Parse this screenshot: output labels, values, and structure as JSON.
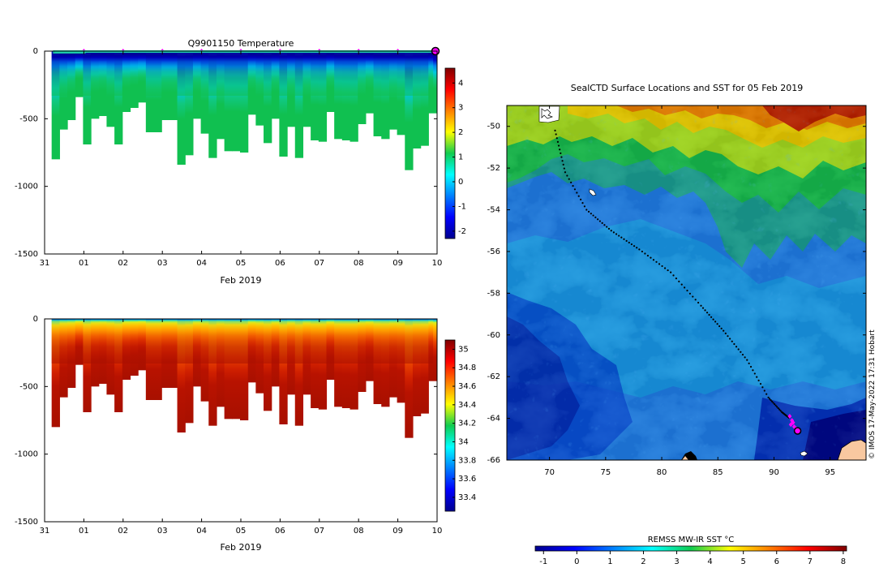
{
  "credit": "© IMOS 17-May-2022 17:31 Hobart",
  "chart_data": [
    {
      "type": "heatmap",
      "title": "Q9901150  Temperature",
      "variable": "temperature",
      "xlabel": "Feb 2019",
      "ylabel": "",
      "x_ticks": [
        "31",
        "01",
        "02",
        "03",
        "04",
        "05",
        "06",
        "07",
        "08",
        "09",
        "10"
      ],
      "xlim": [
        -1,
        9
      ],
      "ylim": [
        -1500,
        0
      ],
      "y_ticks": [
        0,
        -500,
        -1000,
        -1500
      ],
      "colorbar": {
        "range": [
          -2.3,
          4.6
        ],
        "ticks": [
          -2,
          -1,
          0,
          1,
          2,
          3,
          4
        ],
        "colormap": "jet"
      },
      "profile_day_offsets": [
        -0.8,
        -0.6,
        -0.4,
        -0.2,
        0.0,
        0.2,
        0.4,
        0.6,
        0.8,
        1.0,
        1.2,
        1.4,
        1.6,
        1.8,
        2.0,
        2.2,
        2.4,
        2.6,
        2.8,
        3.0,
        3.2,
        3.4,
        3.6,
        3.8,
        4.0,
        4.2,
        4.4,
        4.6,
        4.8,
        5.0,
        5.2,
        5.4,
        5.6,
        5.8,
        6.0,
        6.2,
        6.4,
        6.6,
        6.8,
        7.0,
        7.2,
        7.4,
        7.6,
        7.8,
        8.0,
        8.2,
        8.4,
        8.6,
        8.8
      ],
      "profile_max_depths": [
        800,
        580,
        510,
        340,
        690,
        500,
        480,
        560,
        690,
        450,
        420,
        380,
        600,
        600,
        510,
        510,
        840,
        770,
        500,
        610,
        790,
        650,
        740,
        740,
        750,
        470,
        550,
        680,
        500,
        780,
        560,
        790,
        560,
        660,
        670,
        450,
        650,
        660,
        670,
        540,
        460,
        630,
        650,
        580,
        620,
        880,
        720,
        700,
        460
      ],
      "gap_days": [
        8.9,
        9.85
      ],
      "surface_markers_days": [
        0,
        1,
        2,
        3,
        4,
        5,
        6,
        7,
        8
      ],
      "current_marker_day": 9
    },
    {
      "type": "heatmap",
      "title": "",
      "variable": "salinity",
      "xlabel": "Feb 2019",
      "x_ticks": [
        "31",
        "01",
        "02",
        "03",
        "04",
        "05",
        "06",
        "07",
        "08",
        "09",
        "10"
      ],
      "xlim": [
        -1,
        9
      ],
      "ylim": [
        -1500,
        0
      ],
      "y_ticks": [
        0,
        -500,
        -1000,
        -1500
      ],
      "colorbar": {
        "range": [
          33.25,
          35.1
        ],
        "ticks": [
          33.4,
          33.6,
          33.8,
          34,
          34.2,
          34.4,
          34.6,
          34.8,
          35
        ],
        "tick_labels": [
          "33.4",
          "33.6",
          "33.8",
          "34",
          "34.2",
          "34.4",
          "34.6",
          "34.8",
          "35"
        ],
        "colormap": "jet"
      }
    },
    {
      "type": "heatmap",
      "title": "SealCTD Surface Locations and SST for 05 Feb 2019",
      "variable": "sea surface temperature",
      "xlabel": "",
      "ylabel": "",
      "x_ticks": [
        70,
        75,
        80,
        85,
        90,
        95
      ],
      "xlim": [
        66.2,
        98.2
      ],
      "y_ticks": [
        -50,
        -52,
        -54,
        -56,
        -58,
        -60,
        -62,
        -64,
        -66
      ],
      "ylim": [
        -66,
        -49
      ],
      "colorbar": {
        "label": "REMSS MW-IR SST °C",
        "range": [
          -1.25,
          8.1
        ],
        "ticks": [
          -1,
          0,
          1,
          2,
          3,
          4,
          5,
          6,
          7,
          8
        ],
        "colormap": "jet"
      },
      "track": {
        "waypoints_lon": [
          70.5,
          71.4,
          73.3,
          75.5,
          78.0,
          80.8,
          83.5,
          85.5,
          87.6,
          89.5,
          90.7,
          91.4
        ],
        "waypoints_lat": [
          -50.2,
          -52.2,
          -54.0,
          -55.0,
          -55.9,
          -57.0,
          -58.6,
          -59.8,
          -61.2,
          -63.0,
          -63.7,
          -64.0
        ],
        "recent_positions_lon": [
          91.4,
          91.6,
          91.5,
          91.8,
          91.7,
          92.0
        ],
        "recent_positions_lat": [
          -63.9,
          -64.1,
          -64.3,
          -64.4,
          -64.2,
          -64.5
        ],
        "current_position": [
          92.1,
          -64.6
        ]
      }
    }
  ]
}
